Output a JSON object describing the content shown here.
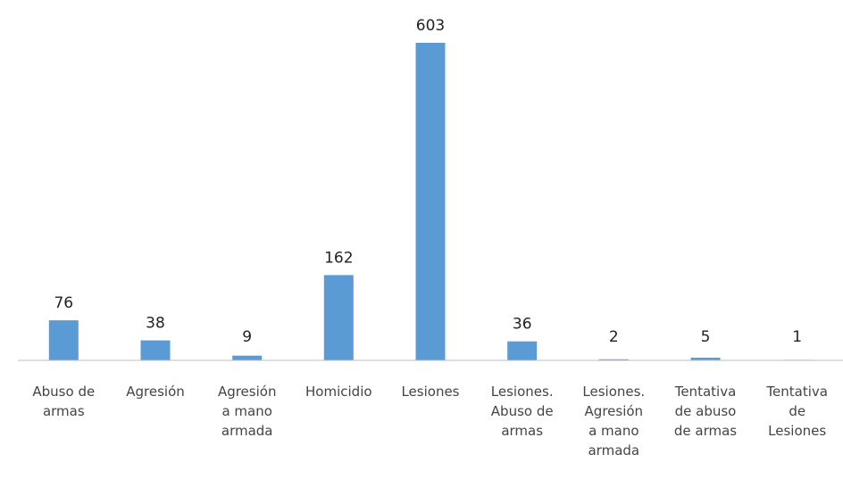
{
  "chart_data": {
    "type": "bar",
    "categories": [
      [
        "Abuso de",
        "armas"
      ],
      [
        "Agresión"
      ],
      [
        "Agresión",
        "a mano",
        "armada"
      ],
      [
        "Homicidio"
      ],
      [
        "Lesiones"
      ],
      [
        "Lesiones.",
        "Abuso de",
        "armas"
      ],
      [
        "Lesiones.",
        "Agresión",
        "a mano",
        "armada"
      ],
      [
        "Tentativa",
        "de abuso",
        "de armas"
      ],
      [
        "Tentativa",
        "de",
        "Lesiones"
      ]
    ],
    "values": [
      76,
      38,
      9,
      162,
      603,
      36,
      2,
      5,
      1
    ],
    "data_labels": [
      "76",
      "38",
      "9",
      "162",
      "603",
      "36",
      "2",
      "5",
      "1"
    ],
    "ylim": [
      0,
      620
    ],
    "grid": false,
    "legend": "none",
    "colors": {
      "bar": "#5b9bd5",
      "axis": "#bfbfbf",
      "text": "#222222",
      "category_text": "#444444"
    }
  }
}
